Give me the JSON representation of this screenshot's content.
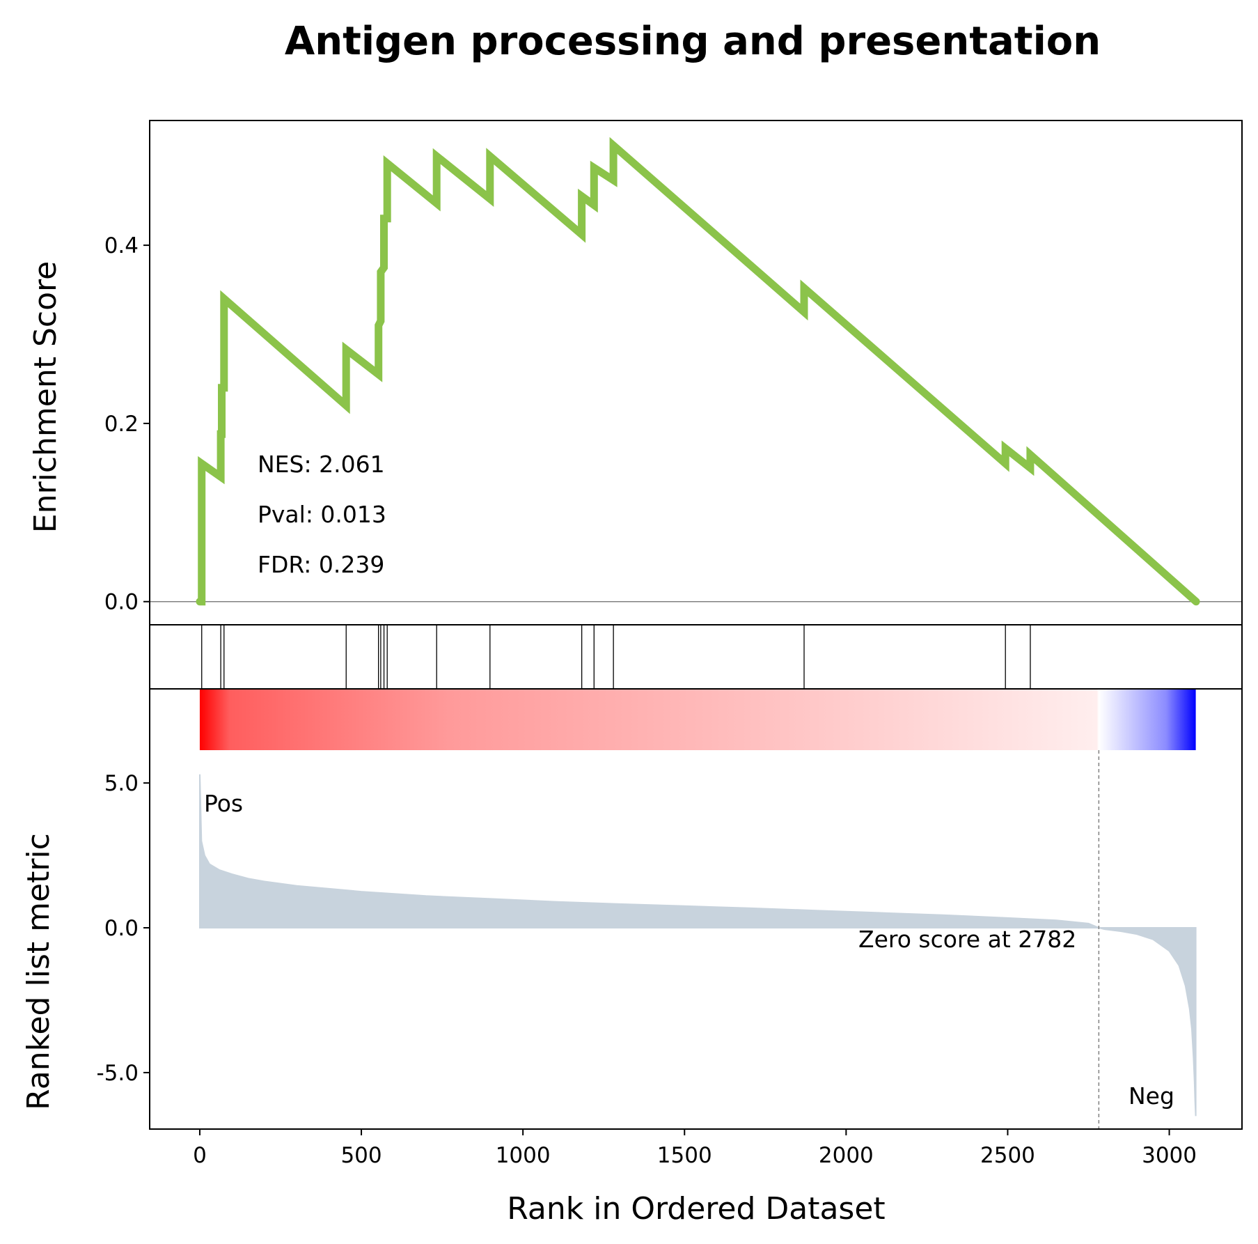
{
  "chart_data": {
    "type": "line",
    "title": "Antigen processing and presentation",
    "xlabel": "Rank in Ordered Dataset",
    "xlim": [
      -155,
      3225
    ],
    "x_ticks": [
      "0",
      "500",
      "1000",
      "1500",
      "2000",
      "2500",
      "3000"
    ],
    "x_tick_values": [
      0,
      500,
      1000,
      1500,
      2000,
      2500,
      3000
    ],
    "colors": {
      "enrichment_line": "#8bc34a",
      "metric_fill": "#c8d3dd",
      "pos": "#ff0000",
      "neg": "#0000ff",
      "hits": "#000000"
    },
    "enrichment": {
      "ylabel": "Enrichment Score",
      "ylim": [
        -0.026,
        0.54
      ],
      "y_ticks": [
        "0.0",
        "0.2",
        "0.4"
      ],
      "y_tick_values": [
        0.0,
        0.2,
        0.4
      ],
      "points": [
        [
          0,
          0.0
        ],
        [
          6,
          0.0
        ],
        [
          6,
          0.155
        ],
        [
          65,
          0.14
        ],
        [
          65,
          0.188
        ],
        [
          68,
          0.188
        ],
        [
          68,
          0.24
        ],
        [
          75,
          0.24
        ],
        [
          75,
          0.34
        ],
        [
          453,
          0.22
        ],
        [
          453,
          0.283
        ],
        [
          553,
          0.255
        ],
        [
          553,
          0.31
        ],
        [
          560,
          0.315
        ],
        [
          560,
          0.37
        ],
        [
          570,
          0.375
        ],
        [
          570,
          0.43
        ],
        [
          580,
          0.43
        ],
        [
          580,
          0.492
        ],
        [
          733,
          0.447
        ],
        [
          733,
          0.5
        ],
        [
          898,
          0.452
        ],
        [
          898,
          0.5
        ],
        [
          1182,
          0.412
        ],
        [
          1182,
          0.455
        ],
        [
          1220,
          0.445
        ],
        [
          1220,
          0.487
        ],
        [
          1280,
          0.473
        ],
        [
          1280,
          0.512
        ],
        [
          1870,
          0.325
        ],
        [
          1870,
          0.352
        ],
        [
          2493,
          0.155
        ],
        [
          2493,
          0.172
        ],
        [
          2570,
          0.15
        ],
        [
          2570,
          0.165
        ],
        [
          3083,
          0.0
        ]
      ],
      "stats": {
        "nes": "NES: 2.061",
        "pval": "Pval: 0.013",
        "fdr": "FDR: 0.239"
      }
    },
    "hits": [
      6,
      65,
      75,
      453,
      553,
      560,
      570,
      580,
      733,
      898,
      1182,
      1220,
      1280,
      1870,
      2493,
      2570
    ],
    "metric": {
      "ylabel": "Ranked list metric",
      "ylim": [
        -6.95,
        8.25
      ],
      "y_ticks": [
        "5.0",
        "0.0",
        "-5.0"
      ],
      "y_tick_values": [
        5.0,
        0.0,
        -5.0
      ],
      "points": [
        [
          0,
          5.3
        ],
        [
          5,
          3.0
        ],
        [
          15,
          2.5
        ],
        [
          30,
          2.2
        ],
        [
          60,
          2.0
        ],
        [
          100,
          1.85
        ],
        [
          150,
          1.7
        ],
        [
          200,
          1.6
        ],
        [
          300,
          1.45
        ],
        [
          400,
          1.35
        ],
        [
          500,
          1.25
        ],
        [
          700,
          1.1
        ],
        [
          900,
          1.0
        ],
        [
          1100,
          0.9
        ],
        [
          1300,
          0.82
        ],
        [
          1500,
          0.75
        ],
        [
          1700,
          0.68
        ],
        [
          1900,
          0.6
        ],
        [
          2100,
          0.52
        ],
        [
          2300,
          0.44
        ],
        [
          2500,
          0.34
        ],
        [
          2650,
          0.26
        ],
        [
          2750,
          0.15
        ],
        [
          2782,
          0.0
        ],
        [
          2800,
          -0.05
        ],
        [
          2850,
          -0.12
        ],
        [
          2900,
          -0.22
        ],
        [
          2950,
          -0.4
        ],
        [
          3000,
          -0.8
        ],
        [
          3030,
          -1.3
        ],
        [
          3050,
          -2.0
        ],
        [
          3063,
          -2.8
        ],
        [
          3070,
          -3.5
        ],
        [
          3075,
          -4.5
        ],
        [
          3078,
          -5.3
        ],
        [
          3080,
          -6.0
        ],
        [
          3082,
          -6.5
        ]
      ],
      "zero_cross": 2782,
      "zero_label": "Zero score at 2782",
      "pos_label": "Pos",
      "neg_label": "Neg"
    }
  }
}
